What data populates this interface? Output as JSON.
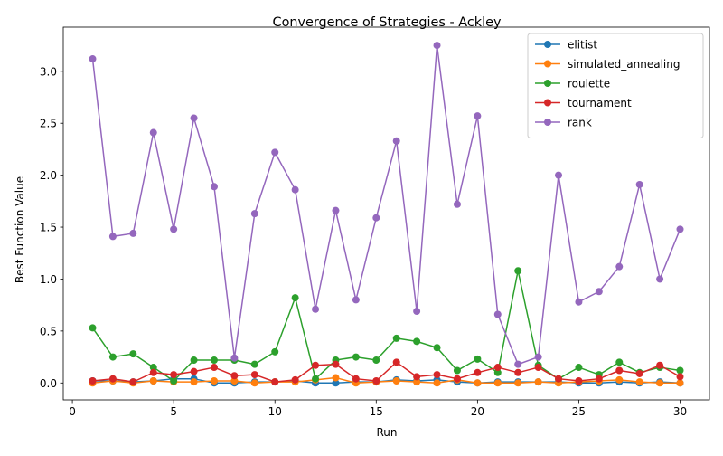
{
  "chart_data": {
    "type": "line",
    "title": "Convergence of Strategies - Ackley",
    "xlabel": "Run",
    "ylabel": "Best Function Value",
    "xlim": [
      -0.45,
      31.45
    ],
    "ylim": [
      -0.163,
      3.425
    ],
    "xticks": [
      0,
      5,
      10,
      15,
      20,
      25,
      30
    ],
    "yticks": [
      0.0,
      0.5,
      1.0,
      1.5,
      2.0,
      2.5,
      3.0
    ],
    "xtick_labels": [
      "0",
      "5",
      "10",
      "15",
      "20",
      "25",
      "30"
    ],
    "ytick_labels": [
      "0.0",
      "0.5",
      "1.0",
      "1.5",
      "2.0",
      "2.5",
      "3.0"
    ],
    "grid": false,
    "legend_position": "top-right",
    "x": [
      1,
      2,
      3,
      4,
      5,
      6,
      7,
      8,
      9,
      10,
      11,
      12,
      13,
      14,
      15,
      16,
      17,
      18,
      19,
      20,
      21,
      22,
      23,
      24,
      25,
      26,
      27,
      28,
      29,
      30
    ],
    "series": [
      {
        "name": "elitist",
        "color": "#1f77b4",
        "values": [
          0.02,
          0.02,
          0.01,
          0.02,
          0.04,
          0.04,
          0.0,
          0.0,
          0.01,
          0.01,
          0.02,
          0.0,
          0.0,
          0.01,
          0.01,
          0.03,
          0.02,
          0.03,
          0.01,
          0.0,
          0.01,
          0.01,
          0.01,
          0.01,
          0.0,
          0.0,
          0.01,
          0.0,
          0.01,
          0.0
        ]
      },
      {
        "name": "simulated_annealing",
        "color": "#ff7f0e",
        "values": [
          0.0,
          0.02,
          0.0,
          0.02,
          0.01,
          0.01,
          0.02,
          0.02,
          0.0,
          0.01,
          0.01,
          0.03,
          0.05,
          0.0,
          0.01,
          0.02,
          0.01,
          0.0,
          0.03,
          0.0,
          0.0,
          0.0,
          0.01,
          0.0,
          0.01,
          0.02,
          0.03,
          0.01,
          0.0,
          0.0
        ]
      },
      {
        "name": "roulette",
        "color": "#2ca02c",
        "values": [
          0.53,
          0.25,
          0.28,
          0.15,
          0.02,
          0.22,
          0.22,
          0.22,
          0.18,
          0.3,
          0.82,
          0.04,
          0.22,
          0.25,
          0.22,
          0.43,
          0.4,
          0.34,
          0.12,
          0.23,
          0.1,
          1.08,
          0.17,
          0.04,
          0.15,
          0.08,
          0.2,
          0.1,
          0.15,
          0.12
        ]
      },
      {
        "name": "tournament",
        "color": "#d62728",
        "values": [
          0.02,
          0.04,
          0.01,
          0.1,
          0.08,
          0.11,
          0.15,
          0.07,
          0.08,
          0.01,
          0.03,
          0.17,
          0.18,
          0.04,
          0.02,
          0.2,
          0.06,
          0.08,
          0.04,
          0.1,
          0.15,
          0.1,
          0.15,
          0.04,
          0.02,
          0.04,
          0.12,
          0.09,
          0.17,
          0.06
        ]
      },
      {
        "name": "rank",
        "color": "#9467bd",
        "values": [
          3.12,
          1.41,
          1.44,
          2.41,
          1.48,
          2.55,
          1.89,
          0.24,
          1.63,
          2.22,
          1.86,
          0.71,
          1.66,
          0.8,
          1.59,
          2.33,
          0.69,
          3.25,
          1.72,
          2.57,
          0.66,
          0.18,
          0.25,
          2.0,
          0.78,
          0.88,
          1.12,
          1.91,
          1.0,
          1.48
        ]
      }
    ]
  }
}
